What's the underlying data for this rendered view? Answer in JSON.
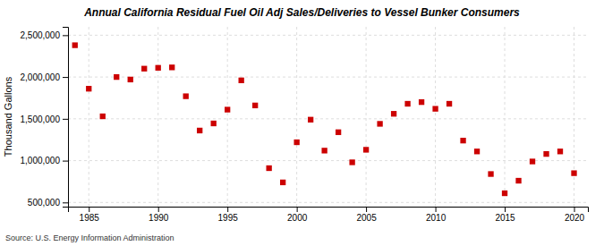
{
  "chart_data": {
    "type": "scatter",
    "title": "Annual California Residual Fuel Oil Adj Sales/Deliveries to Vessel Bunker Consumers",
    "ylabel": "Thousand Gallons",
    "annotations": [
      "Source: U.S. Energy Information Administration"
    ],
    "x": [
      1984,
      1985,
      1986,
      1987,
      1988,
      1989,
      1990,
      1991,
      1992,
      1993,
      1994,
      1995,
      1996,
      1997,
      1998,
      1999,
      2000,
      2001,
      2002,
      2003,
      2004,
      2005,
      2006,
      2007,
      2008,
      2009,
      2010,
      2011,
      2012,
      2013,
      2014,
      2015,
      2016,
      2017,
      2018,
      2019,
      2020
    ],
    "values": [
      2380000,
      1860000,
      1530000,
      2000000,
      1970000,
      2100000,
      2110000,
      2115000,
      1770000,
      1360000,
      1445000,
      1610000,
      1960000,
      1660000,
      910000,
      740000,
      1220000,
      1490000,
      1120000,
      1340000,
      980000,
      1130000,
      1440000,
      1560000,
      1680000,
      1700000,
      1620000,
      1680000,
      1240000,
      1110000,
      840000,
      610000,
      760000,
      990000,
      1080000,
      1110000,
      850000
    ],
    "color": "#cc0000",
    "marker": "square",
    "xlim": [
      1983.5,
      2021
    ],
    "ylim": [
      450000,
      2600000
    ],
    "xticks": [
      1985,
      1990,
      1995,
      2000,
      2005,
      2010,
      2015,
      2020
    ],
    "yticks": [
      {
        "value": 500000,
        "label": "500,000"
      },
      {
        "value": 1000000,
        "label": "1,000,000"
      },
      {
        "value": 1500000,
        "label": "1,500,000"
      },
      {
        "value": 2000000,
        "label": "2,000,000"
      },
      {
        "value": 2500000,
        "label": "2,500,000"
      }
    ],
    "grid": true
  }
}
